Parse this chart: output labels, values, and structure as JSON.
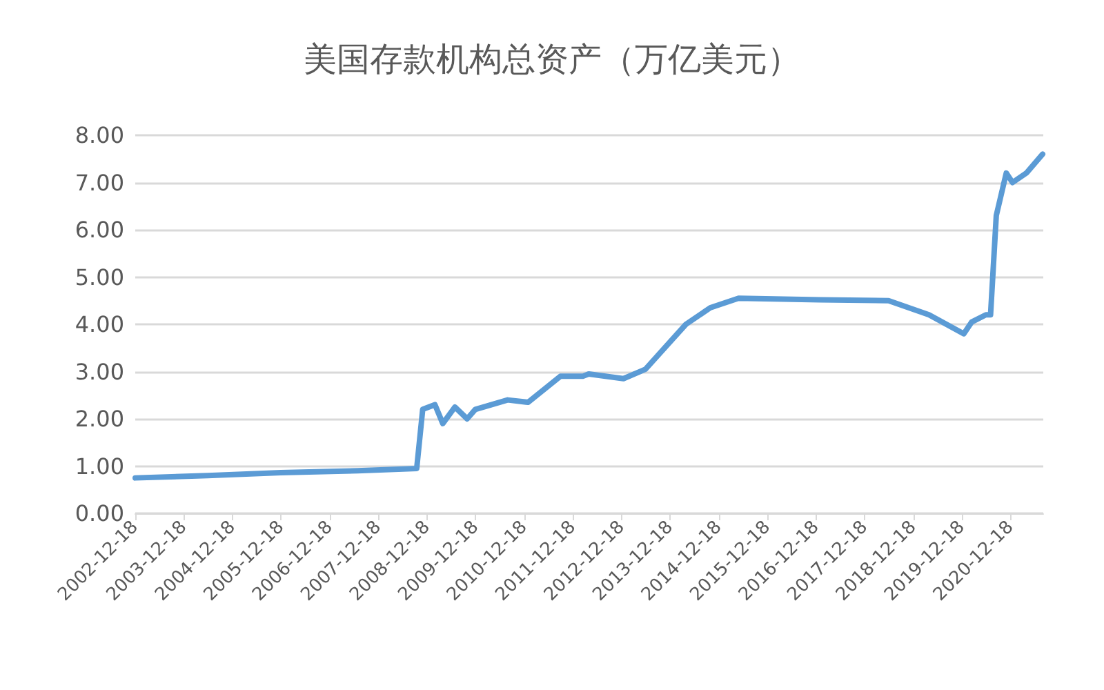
{
  "chart_data": {
    "type": "line",
    "title": "美国存款机构总资产（万亿美元）",
    "x": [
      "2002-12-18",
      "2004-06-15",
      "2005-12-15",
      "2007-07-15",
      "2008-10-01",
      "2008-11-15",
      "2009-02-15",
      "2009-04-15",
      "2009-07-15",
      "2009-10-15",
      "2009-12-15",
      "2010-08-15",
      "2011-01-15",
      "2011-09-15",
      "2012-03-01",
      "2012-04-15",
      "2013-01-01",
      "2013-06-15",
      "2014-04-15",
      "2014-10-15",
      "2015-05-15",
      "2017-01-15",
      "2018-06-15",
      "2019-04-15",
      "2020-01-01",
      "2020-03-01",
      "2020-06-15",
      "2020-07-20",
      "2020-09-01",
      "2020-11-15",
      "2021-01-01",
      "2021-04-15",
      "2021-08-15"
    ],
    "series": [
      {
        "color": "#5b9bd5",
        "values": [
          0.75,
          0.8,
          0.86,
          0.9,
          0.95,
          2.2,
          2.3,
          1.9,
          2.25,
          2.0,
          2.2,
          2.4,
          2.35,
          2.9,
          2.9,
          2.95,
          2.85,
          3.05,
          4.0,
          4.35,
          4.55,
          4.52,
          4.5,
          4.2,
          3.8,
          4.05,
          4.2,
          4.2,
          6.3,
          7.2,
          7.0,
          7.2,
          7.6
        ]
      }
    ],
    "xlim": [
      "2002-12-18",
      "2021-08-20"
    ],
    "xticks": [
      "2002-12-18",
      "2003-12-18",
      "2004-12-18",
      "2005-12-18",
      "2006-12-18",
      "2007-12-18",
      "2008-12-18",
      "2009-12-18",
      "2010-12-18",
      "2011-12-18",
      "2012-12-18",
      "2013-12-18",
      "2014-12-18",
      "2015-12-18",
      "2016-12-18",
      "2017-12-18",
      "2018-12-18",
      "2019-12-18",
      "2020-12-18"
    ],
    "ylim": [
      0,
      8
    ],
    "yticks": [
      {
        "value": 0,
        "label": "0.00"
      },
      {
        "value": 1,
        "label": "1.00"
      },
      {
        "value": 2,
        "label": "2.00"
      },
      {
        "value": 3,
        "label": "3.00"
      },
      {
        "value": 4,
        "label": "4.00"
      },
      {
        "value": 5,
        "label": "5.00"
      },
      {
        "value": 6,
        "label": "6.00"
      },
      {
        "value": 7,
        "label": "7.00"
      },
      {
        "value": 8,
        "label": "8.00"
      }
    ],
    "grid": "y",
    "marker": "none",
    "line_style": "solid"
  }
}
